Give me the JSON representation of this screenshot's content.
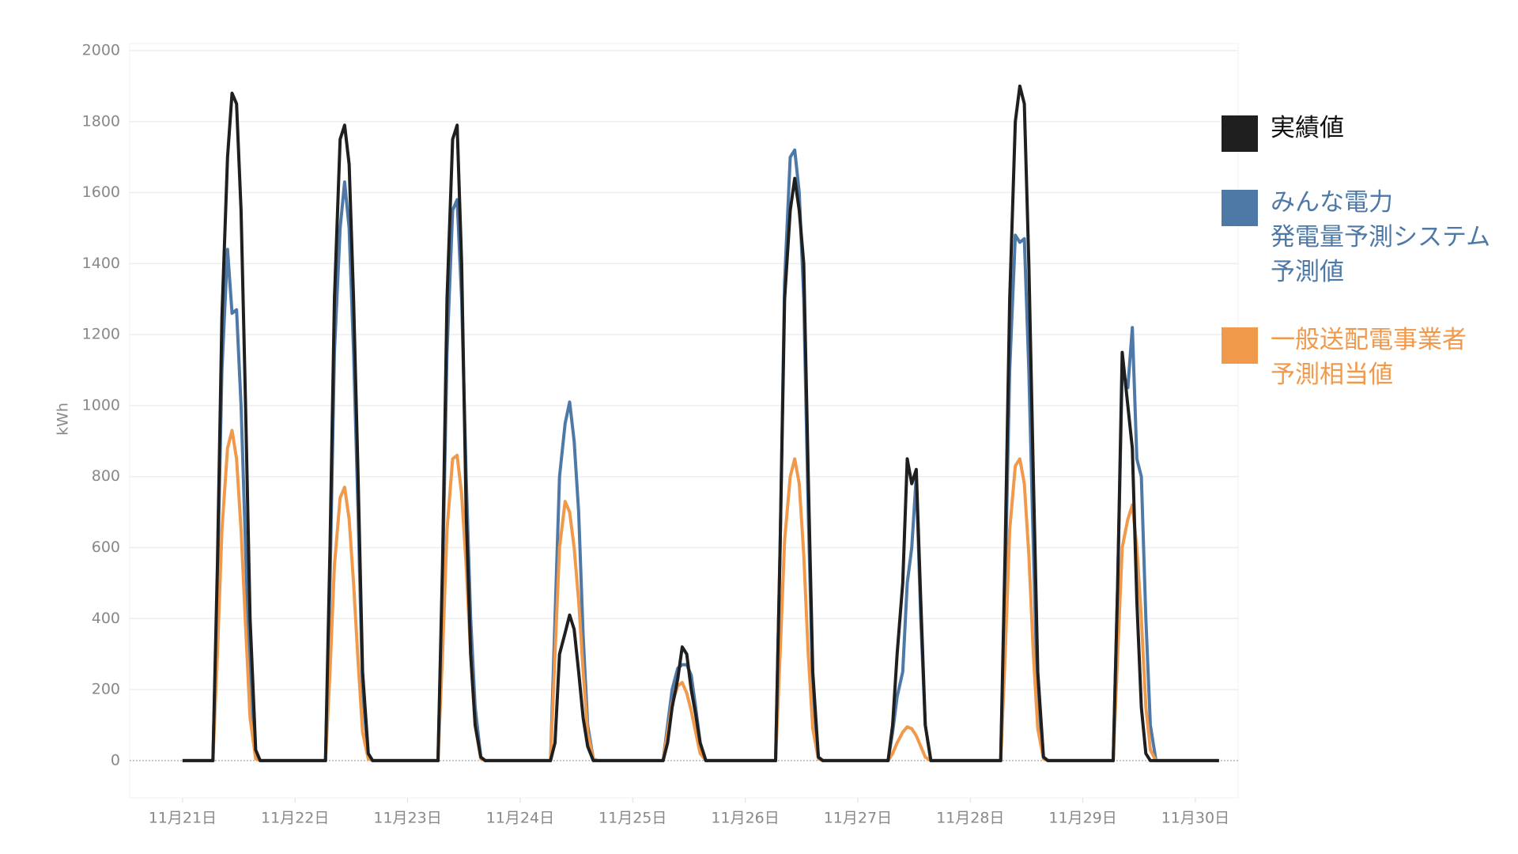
{
  "chart_data": {
    "type": "line",
    "y_label": "kWh",
    "x": [
      21,
      21.27,
      21.31,
      21.35,
      21.4,
      21.44,
      21.48,
      21.52,
      21.56,
      21.6,
      21.65,
      21.69,
      22,
      22.27,
      22.31,
      22.35,
      22.4,
      22.44,
      22.48,
      22.52,
      22.56,
      22.6,
      22.65,
      22.69,
      23,
      23.27,
      23.31,
      23.35,
      23.4,
      23.44,
      23.48,
      23.52,
      23.56,
      23.6,
      23.65,
      23.69,
      24,
      24.27,
      24.31,
      24.35,
      24.4,
      24.44,
      24.48,
      24.52,
      24.56,
      24.6,
      24.65,
      24.69,
      25,
      25.27,
      25.31,
      25.35,
      25.4,
      25.44,
      25.48,
      25.52,
      25.56,
      25.6,
      25.65,
      25.69,
      26,
      26.27,
      26.31,
      26.35,
      26.4,
      26.44,
      26.48,
      26.52,
      26.56,
      26.6,
      26.65,
      26.69,
      27,
      27.27,
      27.31,
      27.35,
      27.4,
      27.44,
      27.48,
      27.52,
      27.56,
      27.6,
      27.65,
      27.69,
      28,
      28.27,
      28.31,
      28.35,
      28.4,
      28.44,
      28.48,
      28.52,
      28.56,
      28.6,
      28.65,
      28.69,
      29,
      29.27,
      29.31,
      29.35,
      29.4,
      29.44,
      29.48,
      29.52,
      29.56,
      29.6,
      29.65,
      29.69,
      30,
      30.21
    ],
    "series": [
      {
        "name": "実績値",
        "color": "#1f1f1f",
        "values": [
          0,
          0,
          550,
          1250,
          1700,
          1880,
          1850,
          1550,
          1000,
          400,
          30,
          0,
          0,
          0,
          600,
          1300,
          1750,
          1790,
          1680,
          1300,
          800,
          250,
          20,
          0,
          0,
          0,
          550,
          1300,
          1750,
          1790,
          1400,
          700,
          300,
          100,
          10,
          0,
          0,
          0,
          50,
          300,
          360,
          410,
          370,
          250,
          120,
          40,
          0,
          0,
          0,
          0,
          50,
          150,
          230,
          320,
          300,
          200,
          130,
          50,
          0,
          0,
          0,
          0,
          600,
          1300,
          1550,
          1640,
          1550,
          1400,
          800,
          250,
          10,
          0,
          0,
          0,
          100,
          300,
          500,
          850,
          780,
          820,
          450,
          100,
          0,
          0,
          0,
          0,
          600,
          1300,
          1800,
          1900,
          1850,
          1400,
          800,
          250,
          10,
          0,
          0,
          0,
          500,
          1150,
          1000,
          880,
          450,
          150,
          20,
          0,
          0,
          0,
          0,
          0
        ]
      },
      {
        "name": "みんな電力\n発電量予測システム\n予測値",
        "color": "#4e79a7",
        "values": [
          0,
          0,
          500,
          1100,
          1440,
          1260,
          1270,
          1000,
          600,
          200,
          10,
          0,
          0,
          0,
          500,
          1150,
          1500,
          1630,
          1500,
          1150,
          700,
          200,
          10,
          0,
          0,
          0,
          500,
          1150,
          1550,
          1580,
          1300,
          800,
          400,
          150,
          10,
          0,
          0,
          0,
          400,
          800,
          950,
          1010,
          900,
          700,
          350,
          100,
          5,
          0,
          0,
          0,
          100,
          200,
          260,
          270,
          270,
          240,
          150,
          50,
          0,
          0,
          0,
          0,
          600,
          1350,
          1700,
          1720,
          1600,
          1300,
          700,
          200,
          10,
          0,
          0,
          0,
          80,
          180,
          250,
          500,
          600,
          800,
          400,
          100,
          0,
          0,
          0,
          0,
          500,
          1100,
          1480,
          1460,
          1470,
          1100,
          600,
          150,
          10,
          0,
          0,
          0,
          500,
          1100,
          1050,
          1220,
          850,
          800,
          400,
          100,
          0,
          0,
          0,
          0
        ]
      },
      {
        "name": "一般送配電事業者\n予測相当値",
        "color": "#f0994a",
        "values": [
          0,
          0,
          300,
          650,
          880,
          930,
          850,
          650,
          380,
          120,
          5,
          0,
          0,
          0,
          250,
          550,
          740,
          770,
          680,
          500,
          280,
          80,
          5,
          0,
          0,
          0,
          300,
          650,
          850,
          860,
          750,
          550,
          300,
          100,
          5,
          0,
          0,
          0,
          300,
          600,
          730,
          700,
          600,
          450,
          250,
          80,
          5,
          0,
          0,
          0,
          80,
          160,
          210,
          220,
          190,
          140,
          80,
          20,
          0,
          0,
          0,
          0,
          300,
          620,
          800,
          850,
          780,
          580,
          300,
          90,
          5,
          0,
          0,
          0,
          20,
          50,
          80,
          95,
          90,
          70,
          40,
          10,
          0,
          0,
          0,
          0,
          300,
          650,
          830,
          850,
          780,
          580,
          300,
          90,
          5,
          0,
          0,
          0,
          300,
          600,
          680,
          720,
          600,
          400,
          150,
          30,
          0,
          0,
          0,
          0
        ]
      }
    ],
    "xlim": [
      20.53,
      30.38
    ],
    "xticks": [
      {
        "value": 21,
        "label": "11月21日"
      },
      {
        "value": 22,
        "label": "11月22日"
      },
      {
        "value": 23,
        "label": "11月23日"
      },
      {
        "value": 24,
        "label": "11月24日"
      },
      {
        "value": 25,
        "label": "11月25日"
      },
      {
        "value": 26,
        "label": "11月26日"
      },
      {
        "value": 27,
        "label": "11月27日"
      },
      {
        "value": 28,
        "label": "11月28日"
      },
      {
        "value": 29,
        "label": "11月29日"
      },
      {
        "value": 30,
        "label": "11月30日"
      }
    ],
    "ylim": [
      -105,
      2020
    ],
    "yticks": [
      0,
      200,
      400,
      600,
      800,
      1000,
      1200,
      1400,
      1600,
      1800,
      2000
    ],
    "grid": true,
    "legend": "right"
  }
}
